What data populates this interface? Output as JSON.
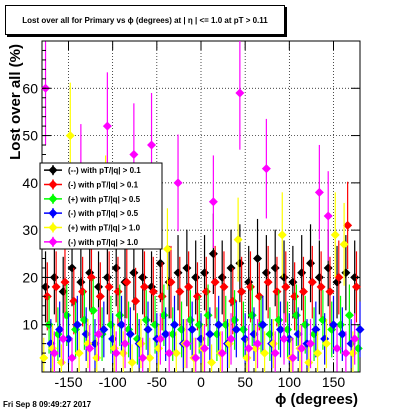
{
  "chart_data": {
    "type": "scatter",
    "title": "Lost over all for Primary vs ϕ (degrees) at | η | <= 1.0 at pT > 0.11",
    "xlabel": "ϕ (degrees)",
    "ylabel": "Lost over all (%)",
    "xlim": [
      -180,
      180
    ],
    "ylim": [
      0,
      70
    ],
    "x_ticks": [
      -150,
      -100,
      -50,
      0,
      50,
      100,
      150
    ],
    "y_ticks": [
      10,
      20,
      30,
      40,
      50,
      60
    ],
    "grid": true,
    "legend_position": "center-left",
    "series": [
      {
        "name": "(--) with pT/|q| > 0.1",
        "color": "#000000",
        "x": [
          -176,
          -166,
          -156,
          -146,
          -136,
          -126,
          -116,
          -106,
          -96,
          -86,
          -76,
          -66,
          -56,
          -46,
          -36,
          -26,
          -16,
          -6,
          4,
          14,
          24,
          34,
          44,
          54,
          64,
          74,
          84,
          94,
          104,
          114,
          124,
          134,
          144,
          154,
          164,
          174
        ],
        "y": [
          18,
          20,
          17,
          22,
          19,
          21,
          18,
          20,
          22,
          19,
          21,
          20,
          18,
          23,
          19,
          21,
          22,
          20,
          21,
          25,
          20,
          22,
          23,
          19,
          24,
          21,
          22,
          20,
          19,
          21,
          23,
          20,
          22,
          19,
          21,
          20
        ]
      },
      {
        "name": "(-) with pT/|q| > 0.1",
        "color": "#ff0000",
        "x": [
          -174,
          -164,
          -154,
          -144,
          -134,
          -124,
          -114,
          -104,
          -94,
          -84,
          -74,
          -64,
          -54,
          -44,
          -34,
          -24,
          -14,
          -4,
          6,
          16,
          26,
          36,
          46,
          56,
          66,
          76,
          86,
          96,
          106,
          116,
          126,
          136,
          146,
          156,
          166,
          176
        ],
        "y": [
          16,
          18,
          19,
          15,
          17,
          20,
          16,
          18,
          17,
          19,
          15,
          18,
          17,
          16,
          19,
          17,
          18,
          16,
          17,
          19,
          18,
          15,
          17,
          18,
          16,
          19,
          17,
          18,
          16,
          17,
          19,
          18,
          17,
          20,
          31,
          18
        ]
      },
      {
        "name": "(+) with pT/|q| > 0.5",
        "color": "#00ff00",
        "x": [
          -172,
          -162,
          -152,
          -142,
          -132,
          -122,
          -112,
          -102,
          -92,
          -82,
          -72,
          -62,
          -52,
          -42,
          -32,
          -22,
          -12,
          -2,
          8,
          18,
          28,
          38,
          48,
          58,
          68,
          78,
          88,
          98,
          108,
          118,
          128,
          138,
          148,
          158,
          168,
          178
        ],
        "y": [
          10,
          8,
          12,
          9,
          11,
          13,
          8,
          10,
          12,
          9,
          7,
          11,
          10,
          12,
          8,
          9,
          11,
          10,
          12,
          8,
          10,
          11,
          9,
          12,
          10,
          8,
          11,
          9,
          12,
          10,
          8,
          11,
          9,
          10,
          12,
          5
        ]
      },
      {
        "name": "(-) with pT/|q| > 0.5",
        "color": "#0000ff",
        "x": [
          -170,
          -160,
          -150,
          -140,
          -130,
          -120,
          -110,
          -100,
          -90,
          -80,
          -70,
          -60,
          -50,
          -40,
          -30,
          -20,
          -10,
          0,
          10,
          20,
          30,
          40,
          50,
          60,
          70,
          80,
          90,
          100,
          110,
          120,
          130,
          140,
          150,
          160,
          170,
          180
        ],
        "y": [
          6,
          9,
          7,
          10,
          8,
          6,
          9,
          7,
          10,
          8,
          6,
          9,
          7,
          8,
          10,
          6,
          9,
          7,
          8,
          10,
          6,
          9,
          7,
          8,
          10,
          6,
          9,
          7,
          8,
          6,
          9,
          7,
          10,
          8,
          6,
          9
        ]
      },
      {
        "name": "(+) with pT/|q| > 1.0",
        "color": "#ffff00",
        "x": [
          -178,
          -168,
          -158,
          -148,
          -138,
          -128,
          -118,
          -108,
          -98,
          -88,
          -78,
          -68,
          -58,
          -48,
          -38,
          -28,
          -18,
          -8,
          2,
          12,
          22,
          32,
          42,
          52,
          62,
          72,
          82,
          92,
          102,
          112,
          122,
          132,
          142,
          152,
          162,
          172
        ],
        "y": [
          3,
          5,
          2,
          50,
          4,
          6,
          3,
          36,
          5,
          4,
          2,
          6,
          3,
          5,
          26,
          4,
          6,
          3,
          5,
          2,
          4,
          6,
          28,
          3,
          5,
          4,
          6,
          29,
          3,
          5,
          2,
          4,
          6,
          29,
          27,
          4
        ]
      },
      {
        "name": "(-) with pT/|q| > 1.0",
        "color": "#ff00ff",
        "x": [
          -176,
          -166,
          -156,
          -146,
          -136,
          -126,
          -116,
          -106,
          -96,
          -86,
          -76,
          -66,
          -56,
          -46,
          -36,
          -26,
          -16,
          -6,
          4,
          14,
          24,
          34,
          44,
          54,
          64,
          74,
          84,
          94,
          104,
          114,
          124,
          134,
          144,
          154,
          164,
          174
        ],
        "y": [
          60,
          4,
          7,
          3,
          42,
          5,
          8,
          52,
          4,
          6,
          46,
          3,
          48,
          7,
          4,
          40,
          6,
          3,
          5,
          36,
          4,
          7,
          59,
          5,
          6,
          43,
          4,
          7,
          3,
          5,
          6,
          38,
          33,
          5,
          4,
          7
        ]
      }
    ]
  },
  "footer": {
    "timestamp": "Fri Sep  8 09:49:27 2017"
  }
}
